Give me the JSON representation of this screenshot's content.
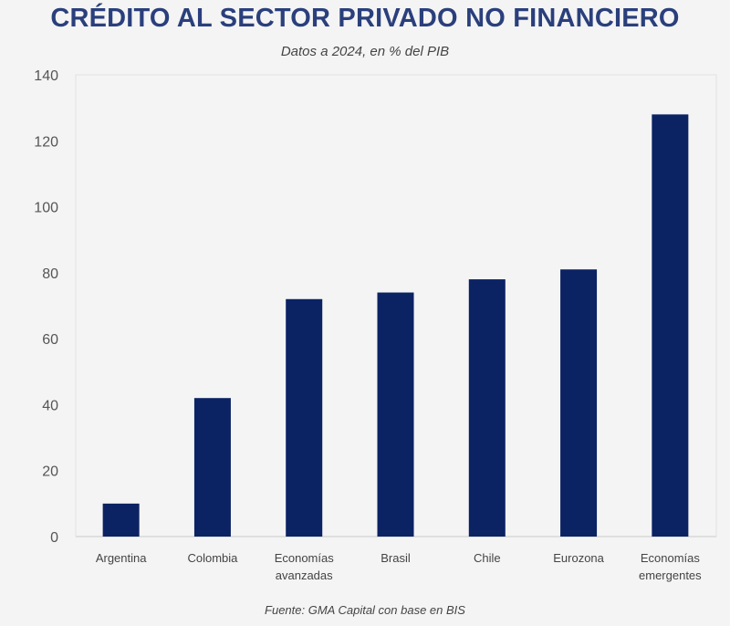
{
  "chart_data": {
    "type": "bar",
    "title": "CRÉDITO AL SECTOR PRIVADO NO FINANCIERO",
    "subtitle": "Datos a 2024, en % del PIB",
    "source": "Fuente: GMA Capital con base en BIS",
    "categories": [
      [
        "Argentina"
      ],
      [
        "Colombia"
      ],
      [
        "Economías",
        "avanzadas"
      ],
      [
        "Brasil"
      ],
      [
        "Chile"
      ],
      [
        "Eurozona"
      ],
      [
        "Economías",
        "emergentes"
      ]
    ],
    "values": [
      10,
      42,
      72,
      74,
      78,
      81,
      128
    ],
    "xlabel": "",
    "ylabel": "",
    "ylim": [
      0,
      140
    ],
    "yticks": [
      "0",
      "20",
      "40",
      "60",
      "80",
      "100",
      "120",
      "140"
    ],
    "grid": false,
    "bar_color": "#0b2263"
  }
}
